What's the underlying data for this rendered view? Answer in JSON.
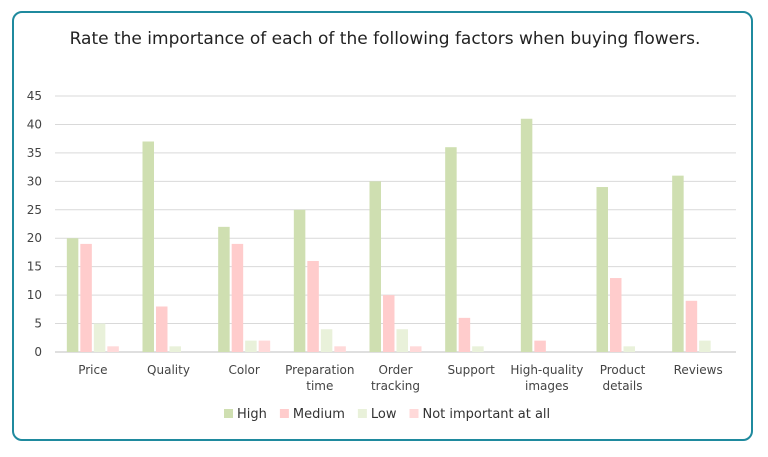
{
  "chart_data": {
    "type": "bar",
    "title": "Rate the importance of each of the following factors when buying flowers.",
    "categories": [
      [
        "Price"
      ],
      [
        "Quality"
      ],
      [
        "Color"
      ],
      [
        "Preparation",
        "time"
      ],
      [
        "Order",
        "tracking"
      ],
      [
        "Support"
      ],
      [
        "High-quality",
        "images"
      ],
      [
        "Product",
        "details"
      ],
      [
        "Reviews"
      ]
    ],
    "series": [
      {
        "name": "High",
        "color": "#cfdfb1",
        "values": [
          20,
          37,
          22,
          25,
          30,
          36,
          41,
          29,
          31
        ]
      },
      {
        "name": "Medium",
        "color": "#ffcccc",
        "values": [
          19,
          8,
          19,
          16,
          10,
          6,
          2,
          13,
          9
        ]
      },
      {
        "name": "Low",
        "color": "#e9f1da",
        "values": [
          5,
          1,
          2,
          4,
          4,
          1,
          0,
          1,
          2
        ]
      },
      {
        "name": "Not important at all",
        "color": "#ffd9d9",
        "values": [
          1,
          0,
          2,
          1,
          1,
          0,
          0,
          0,
          0
        ]
      }
    ],
    "ylim": [
      0,
      45
    ],
    "yticks": [
      0,
      5,
      10,
      15,
      20,
      25,
      30,
      35,
      40,
      45
    ],
    "grid": true,
    "legend": "bottom"
  }
}
